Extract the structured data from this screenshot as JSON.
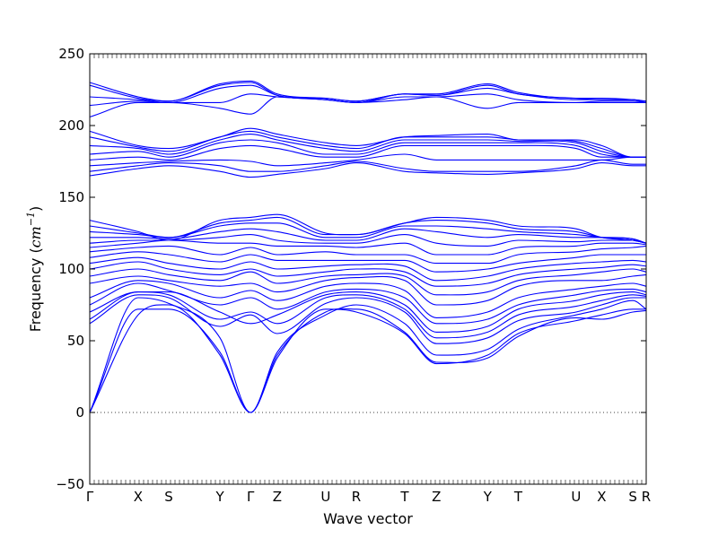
{
  "chart_data": {
    "type": "line",
    "title": "",
    "xlabel": "Wave vector",
    "ylabel_text": "Frequency (",
    "ylabel_unit_base": "cm",
    "ylabel_unit_exp": "−1",
    "ylabel_close": ")",
    "ylim": [
      -50,
      250
    ],
    "y_ticks": [
      -50,
      0,
      50,
      100,
      150,
      200,
      250
    ],
    "y_tick_labels": [
      "−50",
      "0",
      "50",
      "100",
      "150",
      "200",
      "250"
    ],
    "xlim": [
      0,
      1
    ],
    "high_symmetry_points": [
      {
        "label": "Γ",
        "x": 0.0
      },
      {
        "label": "X",
        "x": 0.087
      },
      {
        "label": "S",
        "x": 0.142
      },
      {
        "label": "Y",
        "x": 0.234
      },
      {
        "label": "Γ",
        "x": 0.289
      },
      {
        "label": "Z",
        "x": 0.337
      },
      {
        "label": "U",
        "x": 0.424
      },
      {
        "label": "R",
        "x": 0.479
      },
      {
        "label": "T",
        "x": 0.566
      },
      {
        "label": "Z",
        "x": 0.623
      },
      {
        "label": "Y",
        "x": 0.715
      },
      {
        "label": "T",
        "x": 0.77
      },
      {
        "label": "U",
        "x": 0.874
      },
      {
        "label": "X",
        "x": 0.92
      },
      {
        "label": "S",
        "x": 0.976
      },
      {
        "label": "R",
        "x": 1.0
      }
    ],
    "zero_line": 0,
    "grid": false,
    "line_color": "#0000ff",
    "band_nodes": [
      [
        0,
        68,
        75,
        40,
        0,
        38,
        72,
        70,
        55,
        34,
        40,
        55,
        64,
        68,
        72,
        72
      ],
      [
        0,
        72,
        72,
        42,
        0,
        40,
        70,
        72,
        56,
        35,
        38,
        53,
        66,
        65,
        70,
        71
      ],
      [
        0,
        80,
        76,
        52,
        0,
        42,
        68,
        75,
        62,
        40,
        44,
        58,
        68,
        72,
        78,
        72
      ],
      [
        62,
        82,
        80,
        60,
        68,
        55,
        76,
        80,
        70,
        48,
        52,
        64,
        70,
        75,
        80,
        80
      ],
      [
        65,
        84,
        82,
        65,
        70,
        62,
        80,
        82,
        72,
        52,
        56,
        68,
        74,
        78,
        82,
        81
      ],
      [
        70,
        84,
        84,
        70,
        62,
        68,
        82,
        84,
        75,
        56,
        60,
        72,
        78,
        82,
        84,
        82
      ],
      [
        75,
        90,
        85,
        75,
        80,
        72,
        84,
        86,
        80,
        62,
        65,
        75,
        82,
        85,
        86,
        84
      ],
      [
        80,
        92,
        90,
        80,
        85,
        78,
        88,
        90,
        85,
        66,
        70,
        80,
        86,
        88,
        90,
        88
      ],
      [
        90,
        95,
        92,
        88,
        90,
        84,
        92,
        94,
        92,
        75,
        78,
        88,
        92,
        92,
        95,
        96
      ],
      [
        95,
        100,
        96,
        92,
        98,
        90,
        95,
        96,
        95,
        82,
        84,
        92,
        96,
        98,
        100,
        98
      ],
      [
        100,
        105,
        100,
        96,
        100,
        95,
        98,
        100,
        98,
        88,
        90,
        96,
        100,
        101,
        103,
        102
      ],
      [
        104,
        108,
        104,
        100,
        105,
        100,
        102,
        103,
        102,
        92,
        95,
        100,
        104,
        105,
        106,
        105
      ],
      [
        108,
        112,
        110,
        105,
        110,
        106,
        106,
        106,
        106,
        98,
        100,
        104,
        108,
        110,
        110,
        110
      ],
      [
        112,
        115,
        116,
        110,
        115,
        110,
        112,
        110,
        110,
        104,
        104,
        110,
        112,
        114,
        115,
        116
      ],
      [
        115,
        118,
        120,
        118,
        118,
        116,
        116,
        115,
        118,
        110,
        110,
        115,
        116,
        118,
        118,
        117
      ],
      [
        118,
        120,
        120,
        122,
        124,
        120,
        118,
        118,
        124,
        118,
        116,
        120,
        119,
        120,
        120,
        118
      ],
      [
        122,
        122,
        121,
        126,
        128,
        126,
        120,
        120,
        128,
        126,
        122,
        124,
        122,
        122,
        121,
        118
      ],
      [
        126,
        124,
        122,
        130,
        132,
        132,
        122,
        122,
        130,
        130,
        128,
        126,
        124,
        122,
        121,
        118
      ],
      [
        130,
        125,
        122,
        132,
        134,
        136,
        124,
        124,
        132,
        134,
        132,
        128,
        126,
        122,
        120,
        118
      ],
      [
        134,
        126,
        120,
        134,
        136,
        138,
        125,
        124,
        132,
        136,
        134,
        130,
        128,
        122,
        120,
        118
      ],
      [
        165,
        170,
        172,
        168,
        164,
        166,
        170,
        174,
        168,
        167,
        166,
        167,
        170,
        174,
        172,
        172
      ],
      [
        168,
        172,
        174,
        172,
        168,
        168,
        172,
        175,
        170,
        168,
        168,
        168,
        172,
        176,
        173,
        173
      ],
      [
        172,
        174,
        175,
        176,
        175,
        172,
        174,
        176,
        180,
        176,
        176,
        176,
        176,
        176,
        178,
        178
      ],
      [
        176,
        178,
        176,
        184,
        186,
        184,
        178,
        178,
        186,
        186,
        186,
        186,
        184,
        178,
        178,
        178
      ],
      [
        180,
        182,
        178,
        188,
        190,
        188,
        180,
        180,
        188,
        188,
        188,
        188,
        186,
        180,
        178,
        178
      ],
      [
        186,
        184,
        180,
        190,
        194,
        190,
        184,
        182,
        190,
        190,
        190,
        189,
        188,
        182,
        178,
        178
      ],
      [
        192,
        185,
        182,
        192,
        196,
        192,
        186,
        184,
        192,
        192,
        192,
        190,
        189,
        184,
        178,
        178
      ],
      [
        196,
        186,
        184,
        192,
        198,
        194,
        188,
        186,
        192,
        193,
        194,
        190,
        190,
        186,
        178,
        178
      ],
      [
        206,
        216,
        216,
        212,
        208,
        220,
        218,
        216,
        218,
        220,
        212,
        216,
        216,
        216,
        216,
        216
      ],
      [
        214,
        217,
        216,
        216,
        222,
        220,
        218,
        216,
        220,
        220,
        222,
        218,
        216,
        217,
        217,
        216
      ],
      [
        220,
        218,
        216,
        226,
        228,
        221,
        218,
        216,
        222,
        221,
        226,
        222,
        218,
        218,
        218,
        216
      ],
      [
        228,
        219,
        217,
        228,
        230,
        221,
        219,
        217,
        222,
        221,
        228,
        222,
        219,
        218,
        218,
        217
      ],
      [
        230,
        220,
        217,
        229,
        231,
        222,
        219,
        217,
        222,
        222,
        229,
        223,
        219,
        219,
        218,
        217
      ]
    ]
  }
}
